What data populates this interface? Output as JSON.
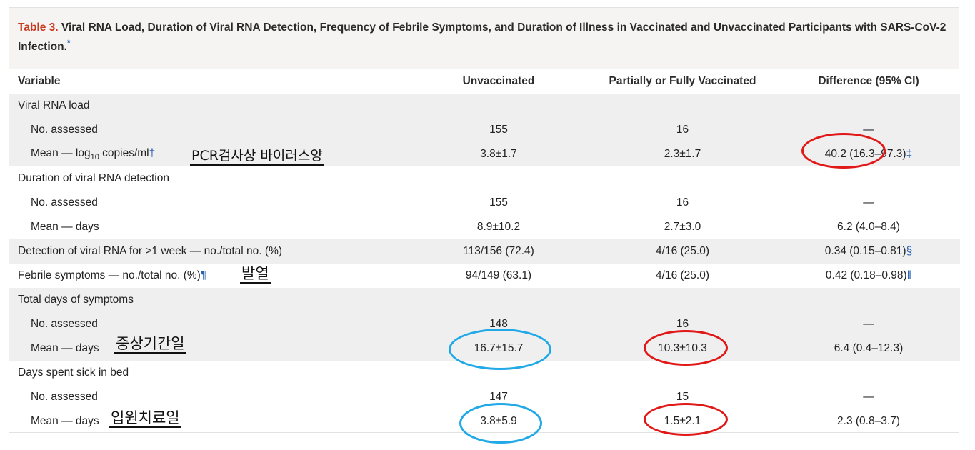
{
  "caption": {
    "label": "Table 3.",
    "text": " Viral RNA Load, Duration of Viral RNA Detection, Frequency of Febrile Symptoms, and Duration of Illness in Vaccinated and Unvaccinated Participants with SARS-CoV-2 Infection.",
    "mark": "*"
  },
  "headers": {
    "variable": "Variable",
    "unvaccinated": "Unvaccinated",
    "vaccinated": "Partially or Fully Vaccinated",
    "difference": "Difference (95% CI)"
  },
  "rows": {
    "viral_load": {
      "label": "Viral RNA load"
    },
    "viral_load_n": {
      "label": "No. assessed",
      "unvacc": "155",
      "vacc": "16",
      "diff": "—"
    },
    "viral_load_mean": {
      "label_pre": "Mean — log",
      "label_sub": "10",
      "label_post": " copies/ml",
      "mark": "†",
      "unvacc": "3.8±1.7",
      "vacc": "2.3±1.7",
      "diff": "40.2 (16.3–97.3)",
      "diff_mark": "‡"
    },
    "duration": {
      "label": "Duration of viral RNA detection"
    },
    "duration_n": {
      "label": "No. assessed",
      "unvacc": "155",
      "vacc": "16",
      "diff": "—"
    },
    "duration_mean": {
      "label": "Mean — days",
      "unvacc": "8.9±10.2",
      "vacc": "2.7±3.0",
      "diff": "6.2 (4.0–8.4)"
    },
    "detection_week": {
      "label": "Detection of viral RNA for >1 week — no./total no. (%)",
      "unvacc": "113/156 (72.4)",
      "vacc": "4/16 (25.0)",
      "diff": "0.34 (0.15–0.81)",
      "diff_mark": "§"
    },
    "febrile": {
      "label": "Febrile symptoms — no./total no. (%)",
      "mark": "¶",
      "unvacc": "94/149 (63.1)",
      "vacc": "4/16 (25.0)",
      "diff": "0.42 (0.18–0.98)",
      "diff_mark": "‖"
    },
    "symptoms": {
      "label": "Total days of symptoms"
    },
    "symptoms_n": {
      "label": "No. assessed",
      "unvacc": "148",
      "vacc": "16",
      "diff": "—"
    },
    "symptoms_mean": {
      "label": "Mean — days",
      "unvacc": "16.7±15.7",
      "vacc": "10.3±10.3",
      "diff": "6.4 (0.4–12.3)"
    },
    "bed": {
      "label": "Days spent sick in bed"
    },
    "bed_n": {
      "label": "No. assessed",
      "unvacc": "147",
      "vacc": "15",
      "diff": "—"
    },
    "bed_mean": {
      "label": "Mean — days",
      "unvacc": "3.8±5.9",
      "vacc": "1.5±2.1",
      "diff": "2.3 (0.8–3.7)"
    }
  },
  "annotations": {
    "viral_load_note": "PCR검사상 바이러스양",
    "fever_note": "발열",
    "symptom_days_note": "증상기간일",
    "bed_days_note": "입원치료일"
  },
  "colors": {
    "caption_label": "#c8391f",
    "footnote_mark": "#2a63b5",
    "circle_red": "#e01818",
    "circle_blue": "#20a9e6",
    "row_shade": "#efefef",
    "caption_bg": "#f6f4f2"
  }
}
